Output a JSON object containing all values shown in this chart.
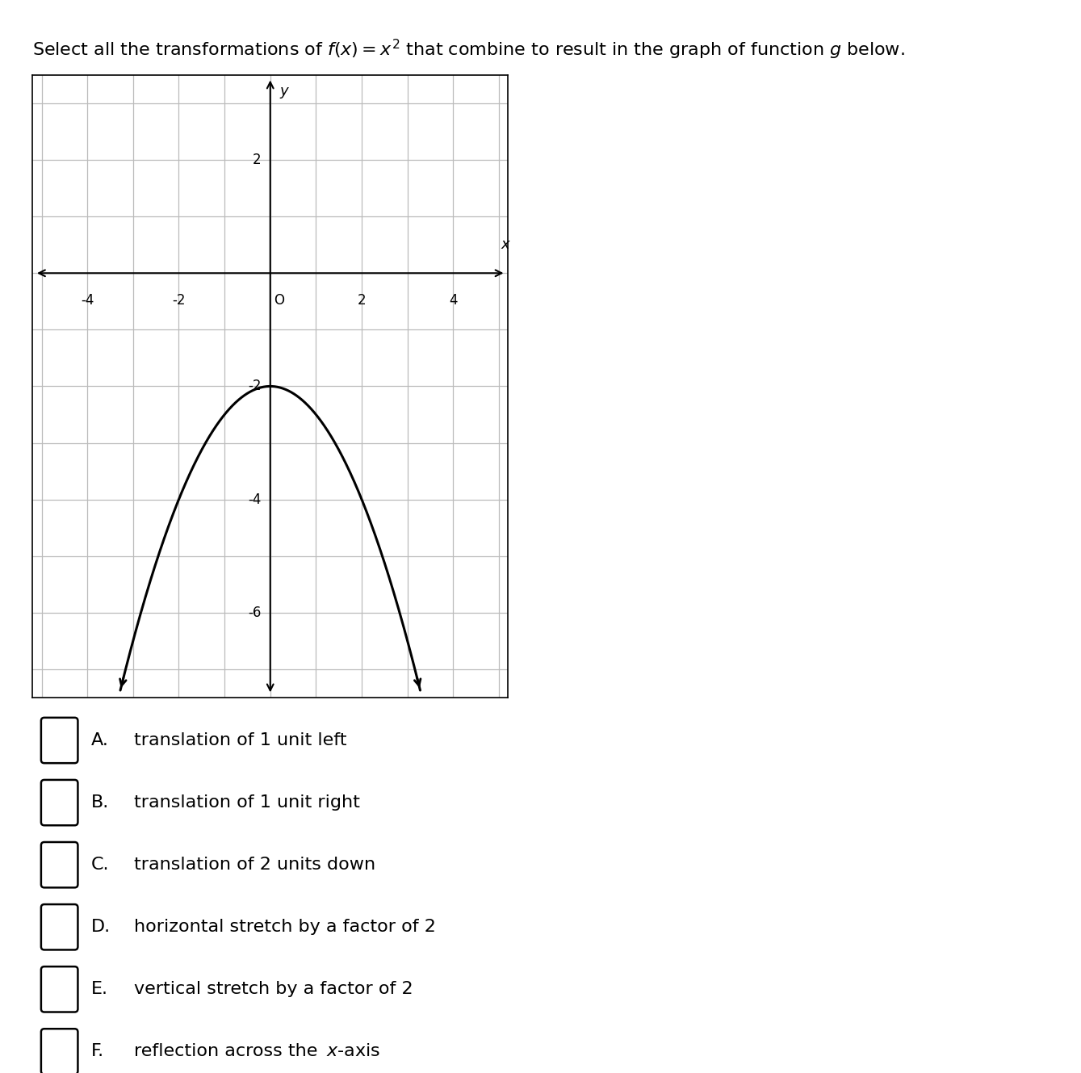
{
  "graph_xlim": [
    -5.2,
    5.2
  ],
  "graph_ylim": [
    -7.5,
    3.5
  ],
  "x_ticks": [
    -4,
    -2,
    0,
    2,
    4
  ],
  "y_ticks": [
    -6,
    -4,
    -2,
    2
  ],
  "x_tick_labels": [
    "-4",
    "-2",
    "O",
    "2",
    "4"
  ],
  "y_tick_labels": [
    "-6",
    "-4",
    "-2",
    "2"
  ],
  "curve_color": "#000000",
  "curve_linewidth": 2.2,
  "grid_color": "#bbbbbb",
  "grid_linewidth": 0.9,
  "background_color": "#ffffff",
  "options": [
    {
      "label": "A.",
      "text": "translation of 1 unit left"
    },
    {
      "label": "B.",
      "text": "translation of 1 unit right"
    },
    {
      "label": "C.",
      "text": "translation of 2 units down"
    },
    {
      "label": "D.",
      "text": "horizontal stretch by a factor of 2"
    },
    {
      "label": "E.",
      "text": "vertical stretch by a factor of 2"
    },
    {
      "label": "F.",
      "text": "reflection across the "
    }
  ],
  "option_font_size": 16,
  "title_font_size": 16
}
